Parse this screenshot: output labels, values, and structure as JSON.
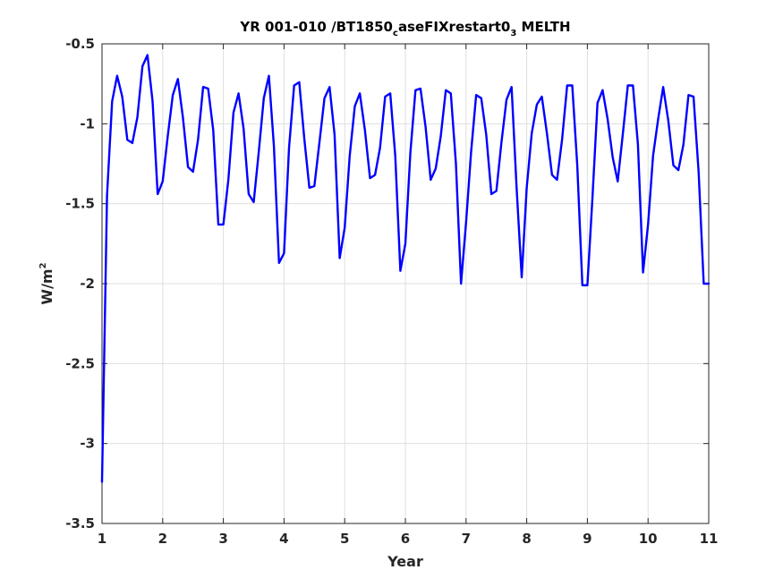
{
  "chart_data": {
    "type": "line",
    "title": {
      "part1": "YR 001-010 /BT1850",
      "sub1": "c",
      "part2": "aseFIXrestart0",
      "sub2": "3",
      "part3": " MELTH"
    },
    "xlabel": "Year",
    "ylabel": {
      "base": "W/m",
      "sup": "2"
    },
    "xlim": [
      1,
      11
    ],
    "ylim": [
      -3.5,
      -0.5
    ],
    "xticks": [
      1,
      2,
      3,
      4,
      5,
      6,
      7,
      8,
      9,
      10,
      11
    ],
    "yticks": [
      -3.5,
      -3,
      -2.5,
      -2,
      -1.5,
      -1,
      -0.5
    ],
    "xtick_labels": [
      "1",
      "2",
      "3",
      "4",
      "5",
      "6",
      "7",
      "8",
      "9",
      "10",
      "11"
    ],
    "ytick_labels": [
      "-3.5",
      "-3",
      "-2.5",
      "-2",
      "-1.5",
      "-1",
      "-0.5"
    ],
    "grid": true,
    "line_color": "#0000ff",
    "series": [
      {
        "x": [
          1.0,
          1.083,
          1.167,
          1.25,
          1.333,
          1.417,
          1.5,
          1.583,
          1.667,
          1.75,
          1.833,
          1.917,
          2.0,
          2.083,
          2.167,
          2.25,
          2.333,
          2.417,
          2.5,
          2.583,
          2.667,
          2.75,
          2.833,
          2.917,
          3.0,
          3.083,
          3.167,
          3.25,
          3.333,
          3.417,
          3.5,
          3.583,
          3.667,
          3.75,
          3.833,
          3.917,
          4.0,
          4.083,
          4.167,
          4.25,
          4.333,
          4.417,
          4.5,
          4.583,
          4.667,
          4.75,
          4.833,
          4.917,
          5.0,
          5.083,
          5.167,
          5.25,
          5.333,
          5.417,
          5.5,
          5.583,
          5.667,
          5.75,
          5.833,
          5.917,
          6.0,
          6.083,
          6.167,
          6.25,
          6.333,
          6.417,
          6.5,
          6.583,
          6.667,
          6.75,
          6.833,
          6.917,
          7.0,
          7.083,
          7.167,
          7.25,
          7.333,
          7.417,
          7.5,
          7.583,
          7.667,
          7.75,
          7.833,
          7.917,
          8.0,
          8.083,
          8.167,
          8.25,
          8.333,
          8.417,
          8.5,
          8.583,
          8.667,
          8.75,
          8.833,
          8.917,
          9.0,
          9.083,
          9.167,
          9.25,
          9.333,
          9.417,
          9.5,
          9.583,
          9.667,
          9.75,
          9.833,
          9.917,
          10.0,
          10.083,
          10.167,
          10.25,
          10.333,
          10.417,
          10.5,
          10.583,
          10.667,
          10.75,
          10.833,
          10.917,
          11.0
        ],
        "y": [
          -3.24,
          -1.45,
          -0.86,
          -0.7,
          -0.83,
          -1.1,
          -1.12,
          -0.96,
          -0.64,
          -0.57,
          -0.86,
          -1.44,
          -1.36,
          -1.08,
          -0.82,
          -0.72,
          -0.96,
          -1.27,
          -1.3,
          -1.1,
          -0.77,
          -0.78,
          -1.04,
          -1.63,
          -1.63,
          -1.35,
          -0.93,
          -0.81,
          -1.03,
          -1.44,
          -1.49,
          -1.18,
          -0.84,
          -0.7,
          -1.14,
          -1.87,
          -1.81,
          -1.15,
          -0.76,
          -0.74,
          -1.09,
          -1.4,
          -1.39,
          -1.12,
          -0.84,
          -0.77,
          -1.07,
          -1.84,
          -1.65,
          -1.2,
          -0.89,
          -0.81,
          -1.04,
          -1.34,
          -1.32,
          -1.15,
          -0.83,
          -0.81,
          -1.2,
          -1.92,
          -1.75,
          -1.18,
          -0.79,
          -0.78,
          -1.02,
          -1.35,
          -1.28,
          -1.08,
          -0.79,
          -0.81,
          -1.25,
          -2.0,
          -1.62,
          -1.18,
          -0.82,
          -0.84,
          -1.07,
          -1.44,
          -1.42,
          -1.12,
          -0.85,
          -0.77,
          -1.4,
          -1.96,
          -1.4,
          -1.06,
          -0.88,
          -0.83,
          -1.06,
          -1.32,
          -1.35,
          -1.1,
          -0.76,
          -0.76,
          -1.26,
          -2.01,
          -2.01,
          -1.47,
          -0.87,
          -0.79,
          -0.97,
          -1.21,
          -1.36,
          -1.07,
          -0.76,
          -0.76,
          -1.13,
          -1.93,
          -1.63,
          -1.2,
          -0.97,
          -0.77,
          -0.98,
          -1.26,
          -1.29,
          -1.13,
          -0.82,
          -0.83,
          -1.3,
          -2.0,
          -2.0
        ]
      }
    ]
  }
}
